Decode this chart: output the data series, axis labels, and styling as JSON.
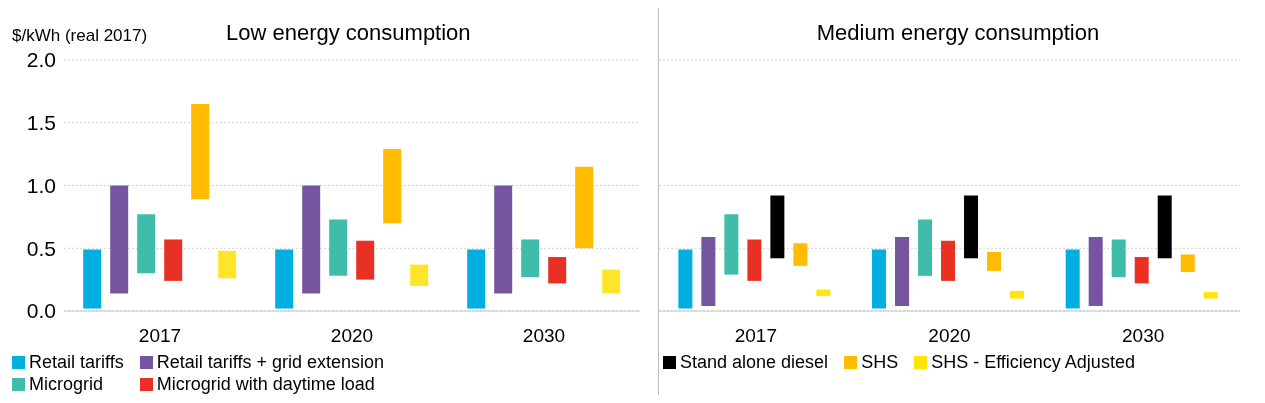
{
  "chart_data": [
    {
      "type": "bar",
      "title": "Low energy consumption",
      "ylabel": "$/kWh (real 2017)",
      "categories": [
        "2017",
        "2020",
        "2030"
      ],
      "ylim": [
        0,
        2
      ],
      "yticks": [
        {
          "value": 0,
          "label": "0.0"
        },
        {
          "value": 0.5,
          "label": "0.5"
        },
        {
          "value": 1,
          "label": "1.0"
        },
        {
          "value": 1.5,
          "label": "1.5"
        },
        {
          "value": 2,
          "label": "2.0"
        }
      ],
      "grid": "y",
      "legend": "bottom",
      "series": [
        {
          "name": "Retail tariffs",
          "color": "#00aee0",
          "base": [
            0.02,
            0.02,
            0.02
          ],
          "values": [
            0.47,
            0.47,
            0.47
          ]
        },
        {
          "name": "Retail tariffs + grid extension",
          "color": "#7554a0",
          "base": [
            0.14,
            0.14,
            0.14
          ],
          "values": [
            0.86,
            0.86,
            0.86
          ]
        },
        {
          "name": "Microgrid",
          "color": "#40bdaa",
          "base": [
            0.3,
            0.28,
            0.27
          ],
          "values": [
            0.47,
            0.45,
            0.3
          ]
        },
        {
          "name": "Microgrid with daytime load",
          "color": "#e83025",
          "base": [
            0.24,
            0.25,
            0.22
          ],
          "values": [
            0.33,
            0.31,
            0.21
          ]
        },
        {
          "color": "#ffbb00",
          "base": [
            0.89,
            0.7,
            0.5
          ],
          "values": [
            0.76,
            0.59,
            0.65
          ]
        },
        {
          "color": "#ffe52a",
          "base": [
            0.26,
            0.2,
            0.14
          ],
          "values": [
            0.22,
            0.17,
            0.19
          ]
        }
      ]
    },
    {
      "type": "bar",
      "title": "Medium energy consumption",
      "categories": [
        "2017",
        "2020",
        "2030"
      ],
      "ylim": [
        0,
        2
      ],
      "yticks": [
        0,
        0.5,
        1
      ],
      "grid": "y",
      "legend": "bottom",
      "tick_labels": "x",
      "series": [
        {
          "color": "#00aee0",
          "base": [
            0.02,
            0.02,
            0.02
          ],
          "values": [
            0.47,
            0.47,
            0.47
          ]
        },
        {
          "color": "#7554a0",
          "base": [
            0.04,
            0.04,
            0.04
          ],
          "values": [
            0.55,
            0.55,
            0.55
          ]
        },
        {
          "color": "#40bdaa",
          "base": [
            0.29,
            0.28,
            0.27
          ],
          "values": [
            0.48,
            0.45,
            0.3
          ]
        },
        {
          "color": "#e83025",
          "base": [
            0.24,
            0.24,
            0.22
          ],
          "values": [
            0.33,
            0.32,
            0.21
          ]
        },
        {
          "name": "Stand alone diesel",
          "color": "#000000",
          "base": [
            0.42,
            0.42,
            0.42
          ],
          "values": [
            0.5,
            0.5,
            0.5
          ]
        },
        {
          "name": "SHS",
          "color": "#ffbb00",
          "base": [
            0.36,
            0.32,
            0.31
          ],
          "values": [
            0.18,
            0.15,
            0.14
          ]
        },
        {
          "name": "SHS - Efficiency Adjusted",
          "color": "#ffe500",
          "base": [
            0.12,
            0.1,
            0.1
          ],
          "values": [
            0.05,
            0.06,
            0.05
          ]
        }
      ]
    }
  ]
}
